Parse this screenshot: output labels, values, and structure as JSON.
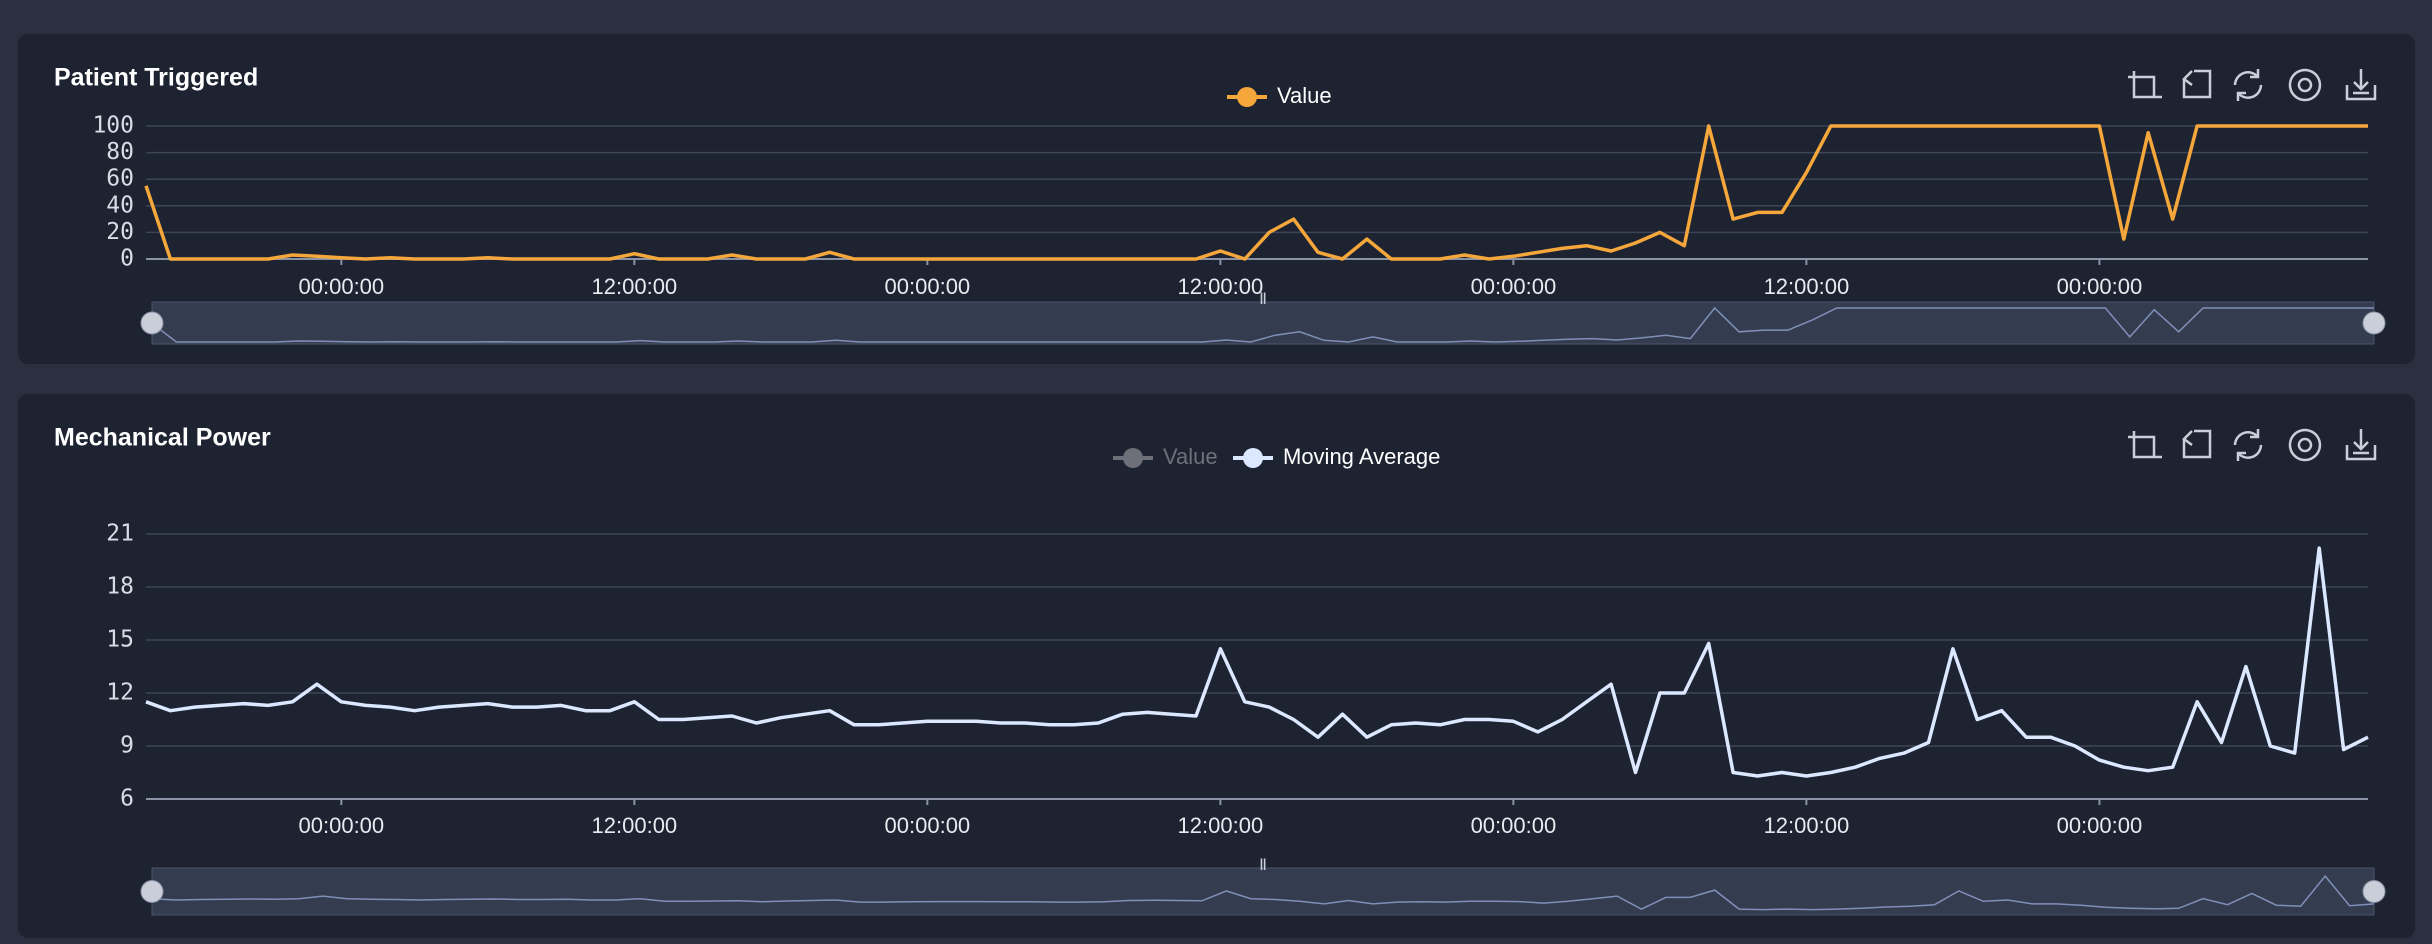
{
  "chart_data": [
    {
      "type": "line",
      "title": "Patient Triggered",
      "x": [
        -8,
        -7,
        -6,
        -5,
        -4,
        -3,
        -2,
        -1,
        0,
        1,
        2,
        3,
        4,
        5,
        6,
        7,
        8,
        9,
        10,
        11,
        12,
        13,
        14,
        15,
        16,
        17,
        18,
        19,
        20,
        21,
        22,
        23,
        24,
        25,
        26,
        27,
        28,
        29,
        30,
        31,
        32,
        33,
        34,
        35,
        36,
        37,
        38,
        39,
        40,
        41,
        42,
        43,
        44,
        45,
        46,
        47,
        48,
        49,
        50,
        51,
        52,
        53,
        54,
        55,
        56,
        57,
        58,
        59,
        60,
        61,
        62,
        63,
        64,
        65,
        66,
        67,
        68,
        69,
        70,
        71,
        72,
        73,
        74,
        75,
        76,
        77,
        78,
        79,
        80,
        81,
        82,
        83
      ],
      "series": [
        {
          "name": "Value",
          "color": "#f5a73b",
          "values": [
            55,
            0,
            0,
            0,
            0,
            0,
            3,
            2,
            1,
            0,
            1,
            0,
            0,
            0,
            1,
            0,
            0,
            0,
            0,
            0,
            4,
            0,
            0,
            0,
            3,
            0,
            0,
            0,
            5,
            0,
            0,
            0,
            0,
            0,
            0,
            0,
            0,
            0,
            0,
            0,
            0,
            0,
            0,
            0,
            6,
            0,
            20,
            30,
            5,
            0,
            15,
            0,
            0,
            0,
            3,
            0,
            2,
            5,
            8,
            10,
            6,
            12,
            20,
            10,
            100,
            30,
            35,
            35,
            65,
            100,
            100,
            100,
            100,
            100,
            100,
            100,
            100,
            100,
            100,
            100,
            100,
            15,
            95,
            30,
            100,
            100,
            100,
            100,
            100,
            100,
            100,
            100
          ]
        }
      ],
      "xlim": [
        -8,
        83
      ],
      "xticks": [
        {
          "value": 0,
          "label": "00:00:00"
        },
        {
          "value": 12,
          "label": "12:00:00"
        },
        {
          "value": 24,
          "label": "00:00:00"
        },
        {
          "value": 36,
          "label": "12:00:00"
        },
        {
          "value": 48,
          "label": "00:00:00"
        },
        {
          "value": 60,
          "label": "12:00:00"
        },
        {
          "value": 72,
          "label": "00:00:00"
        }
      ],
      "ylim": [
        0,
        100
      ],
      "yticks": [
        0,
        20,
        40,
        60,
        80,
        100
      ],
      "grid": true
    },
    {
      "type": "line",
      "title": "Mechanical Power",
      "x": [
        -8,
        -7,
        -6,
        -5,
        -4,
        -3,
        -2,
        -1,
        0,
        1,
        2,
        3,
        4,
        5,
        6,
        7,
        8,
        9,
        10,
        11,
        12,
        13,
        14,
        15,
        16,
        17,
        18,
        19,
        20,
        21,
        22,
        23,
        24,
        25,
        26,
        27,
        28,
        29,
        30,
        31,
        32,
        33,
        34,
        35,
        36,
        37,
        38,
        39,
        40,
        41,
        42,
        43,
        44,
        45,
        46,
        47,
        48,
        49,
        50,
        51,
        52,
        53,
        54,
        55,
        56,
        57,
        58,
        59,
        60,
        61,
        62,
        63,
        64,
        65,
        66,
        67,
        68,
        69,
        70,
        71,
        72,
        73,
        74,
        75,
        76,
        77,
        78,
        79,
        80,
        81,
        82,
        83
      ],
      "series": [
        {
          "name": "Value",
          "color": "#6e7079",
          "hidden": true
        },
        {
          "name": "Moving Average",
          "color": "#dce8ff",
          "values": [
            11.5,
            11,
            11.2,
            11.3,
            11.4,
            11.3,
            11.5,
            12.5,
            11.5,
            11.3,
            11.2,
            11,
            11.2,
            11.3,
            11.4,
            11.2,
            11.2,
            11.3,
            11,
            11,
            11.5,
            10.5,
            10.5,
            10.6,
            10.7,
            10.3,
            10.6,
            10.8,
            11,
            10.2,
            10.2,
            10.3,
            10.4,
            10.4,
            10.4,
            10.3,
            10.3,
            10.2,
            10.2,
            10.3,
            10.8,
            10.9,
            10.8,
            10.7,
            14.5,
            11.5,
            11.2,
            10.5,
            9.5,
            10.8,
            9.5,
            10.2,
            10.3,
            10.2,
            10.5,
            10.5,
            10.4,
            9.8,
            10.5,
            11.5,
            12.5,
            7.5,
            12,
            12,
            14.8,
            7.5,
            7.3,
            7.5,
            7.3,
            7.5,
            7.8,
            8.3,
            8.6,
            9.2,
            14.5,
            10.5,
            11,
            9.5,
            9.5,
            9,
            8.2,
            7.8,
            7.6,
            7.8,
            11.5,
            9.2,
            13.5,
            9,
            8.6,
            20.2,
            8.8,
            9.5
          ]
        }
      ],
      "xlim": [
        -8,
        83
      ],
      "xticks": [
        {
          "value": 0,
          "label": "00:00:00"
        },
        {
          "value": 12,
          "label": "12:00:00"
        },
        {
          "value": 24,
          "label": "00:00:00"
        },
        {
          "value": 36,
          "label": "12:00:00"
        },
        {
          "value": 48,
          "label": "00:00:00"
        },
        {
          "value": 60,
          "label": "12:00:00"
        },
        {
          "value": 72,
          "label": "00:00:00"
        }
      ],
      "ylim": [
        6,
        21
      ],
      "yticks": [
        6,
        9,
        12,
        15,
        18,
        21
      ],
      "grid": true
    }
  ]
}
